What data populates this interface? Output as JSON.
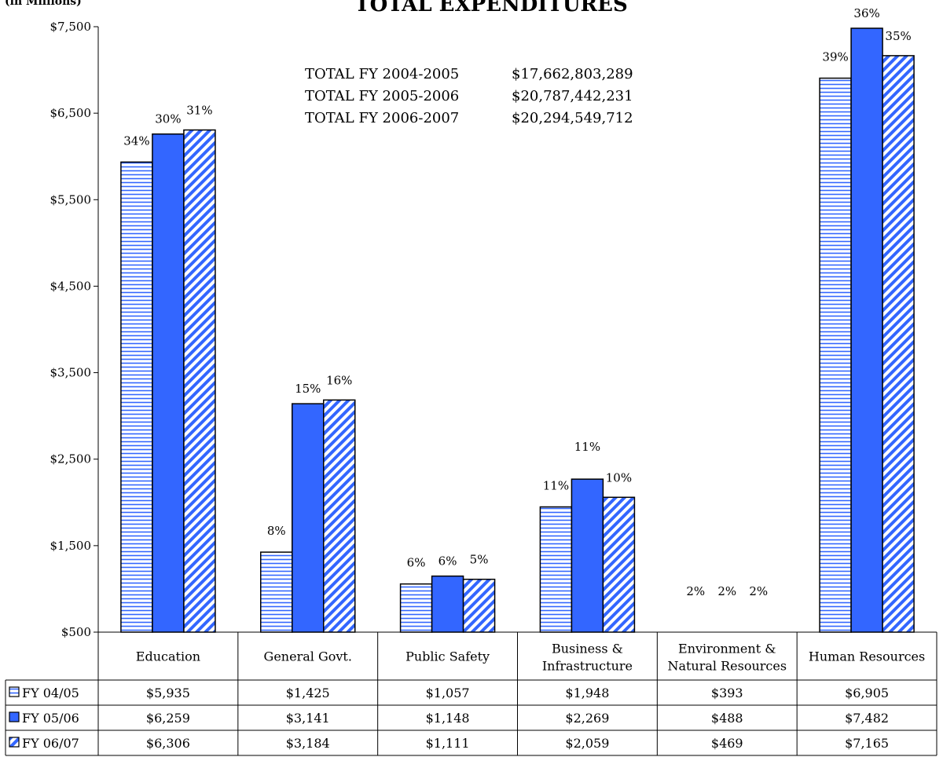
{
  "chart_data": {
    "type": "bar",
    "unit_label": "(in Millions)",
    "title": "TOTAL EXPENDITURES",
    "categories": [
      [
        "Education"
      ],
      [
        "General Govt."
      ],
      [
        "Public Safety"
      ],
      [
        "Business &",
        "Infrastructure"
      ],
      [
        "Environment &",
        "Natural Resources"
      ],
      [
        "Human Resources"
      ]
    ],
    "y_ticks": [
      "$7,500",
      "$6,500",
      "$5,500",
      "$4,500",
      "$3,500",
      "$2,500",
      "$1,500",
      "$500"
    ],
    "ylim": [
      500,
      7500
    ],
    "series": [
      {
        "name": "FY 04/05",
        "values": [
          5935,
          1425,
          1057,
          1948,
          393,
          6905
        ],
        "value_labels": [
          "$5,935",
          "$1,425",
          "$1,057",
          "$1,948",
          "$393",
          "$6,905"
        ],
        "percent_labels": [
          "34%",
          "8%",
          "6%",
          "11%",
          "2%",
          "39%"
        ],
        "pattern": "horizontal-lines"
      },
      {
        "name": "FY 05/06",
        "values": [
          6259,
          3141,
          1148,
          2269,
          488,
          7482
        ],
        "value_labels": [
          "$6,259",
          "$3,141",
          "$1,148",
          "$2,269",
          "$488",
          "$7,482"
        ],
        "percent_labels": [
          "30%",
          "15%",
          "6%",
          "11%",
          "2%",
          "36%"
        ],
        "pattern": "solid"
      },
      {
        "name": "FY 06/07",
        "values": [
          6306,
          3184,
          1111,
          2059,
          469,
          7165
        ],
        "value_labels": [
          "$6,306",
          "$3,184",
          "$1,111",
          "$2,059",
          "$469",
          "$7,165"
        ],
        "percent_labels": [
          "31%",
          "16%",
          "5%",
          "10%",
          "2%",
          "35%"
        ],
        "pattern": "diagonal-lines"
      }
    ],
    "totals": [
      {
        "label": "TOTAL FY 2004-2005",
        "value": "$17,662,803,289"
      },
      {
        "label": "TOTAL FY 2005-2006",
        "value": "$20,787,442,231"
      },
      {
        "label": "TOTAL FY 2006-2007",
        "value": "$20,294,549,712"
      }
    ],
    "colors": {
      "bar_fill": "#3366ff",
      "bar_stroke": "#000000",
      "pattern_bg": "#ffffff"
    },
    "grid": false,
    "legend": "data-table-left"
  }
}
